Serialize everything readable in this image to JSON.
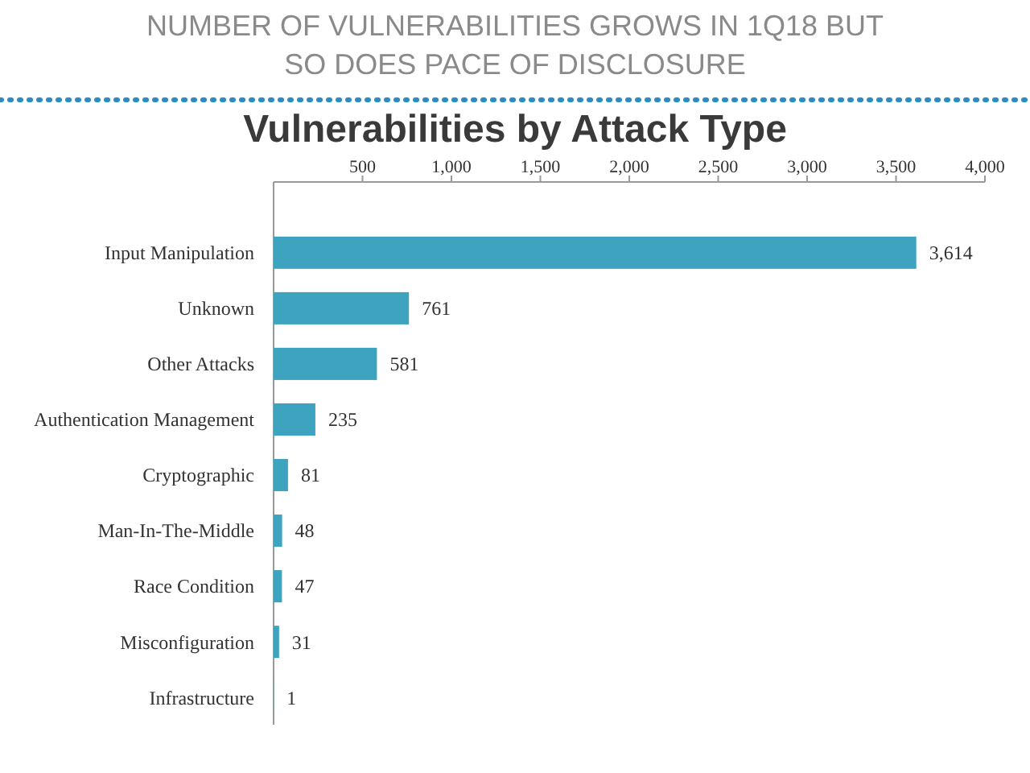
{
  "chart_data": {
    "type": "bar",
    "orientation": "horizontal",
    "title": "NUMBER OF VULNERABILITIES GROWS IN 1Q18 BUT SO DOES PACE OF DISCLOSURE",
    "subtitle": "Vulnerabilities by Attack Type",
    "categories": [
      "Input Manipulation",
      "Unknown",
      "Other Attacks",
      "Authentication Management",
      "Cryptographic",
      "Man-In-The-Middle",
      "Race Condition",
      "Misconfiguration",
      "Infrastructure"
    ],
    "values": [
      3614,
      761,
      581,
      235,
      81,
      48,
      47,
      31,
      1
    ],
    "value_labels": [
      "3,614",
      "761",
      "581",
      "235",
      "81",
      "48",
      "47",
      "31",
      "1"
    ],
    "color": "#3ea3bf",
    "xlim": [
      0,
      4000
    ],
    "xticks": [
      500,
      {
        "value": 1000,
        "label": "1,000"
      },
      {
        "value": 1500,
        "label": "1,500"
      },
      {
        "value": 2000,
        "label": "2,000"
      },
      {
        "value": 2500,
        "label": "2,500"
      },
      {
        "value": 3000,
        "label": "3,000"
      },
      {
        "value": 3500,
        "label": "3,500"
      },
      {
        "value": 4000,
        "label": "4,000"
      }
    ],
    "grid": false
  }
}
